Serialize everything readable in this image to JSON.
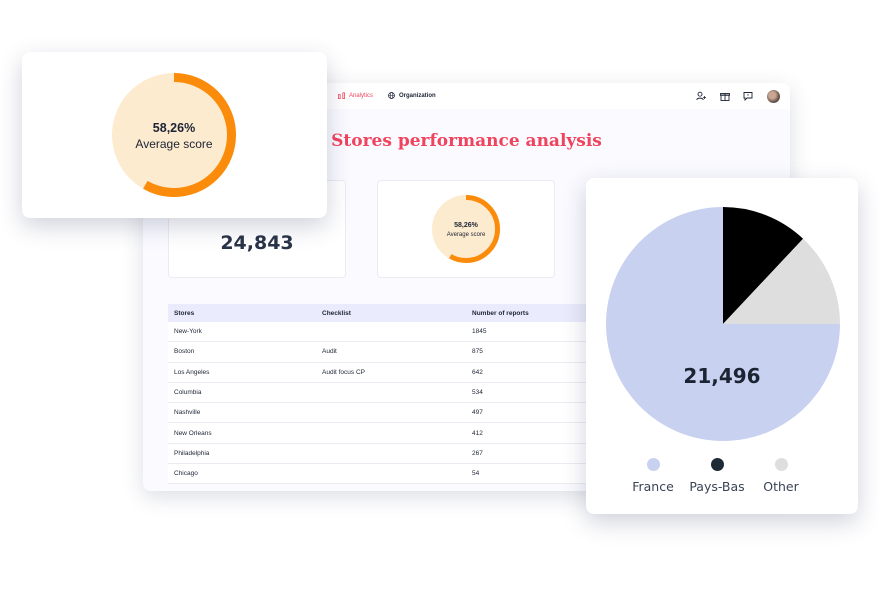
{
  "nav": {
    "analytics_label": "Analytics",
    "organization_label": "Organization"
  },
  "page_title": "Stores performance analysis",
  "kpi": {
    "reports_value": "24,843",
    "average_score_value": "58,26%",
    "average_score_label": "Average score",
    "average_score_fraction": 0.5826
  },
  "table": {
    "headers": [
      "Stores",
      "Checklist",
      "Number of reports"
    ],
    "rows": [
      {
        "store": "New-York",
        "checklist": "",
        "reports": "1845"
      },
      {
        "store": "Boston",
        "checklist": "Audit",
        "reports": "875"
      },
      {
        "store": "Los Angeles",
        "checklist": "Audit focus CP",
        "reports": "642"
      },
      {
        "store": "Columbia",
        "checklist": "",
        "reports": "534"
      },
      {
        "store": "Nashville",
        "checklist": "",
        "reports": "497"
      },
      {
        "store": "New Orleans",
        "checklist": "",
        "reports": "412"
      },
      {
        "store": "Philadelphia",
        "checklist": "",
        "reports": "267"
      },
      {
        "store": "Chicago",
        "checklist": "",
        "reports": "54"
      }
    ]
  },
  "donut_card": {
    "value": "58,26%",
    "label": "Average score"
  },
  "pie_card": {
    "total": "21,496"
  },
  "colors": {
    "accent": "#f0435d",
    "donut_track": "#fdebd0",
    "donut_fill": "#fb8c0b",
    "france": "#c8d2f0",
    "pays_bas": "#000000",
    "other": "#dedede"
  },
  "chart_data": {
    "type": "pie",
    "categories": [
      "France",
      "Pays-Bas",
      "Other"
    ],
    "values": [
      75,
      12,
      13
    ],
    "total_label": "21,496",
    "legend": "bottom"
  }
}
